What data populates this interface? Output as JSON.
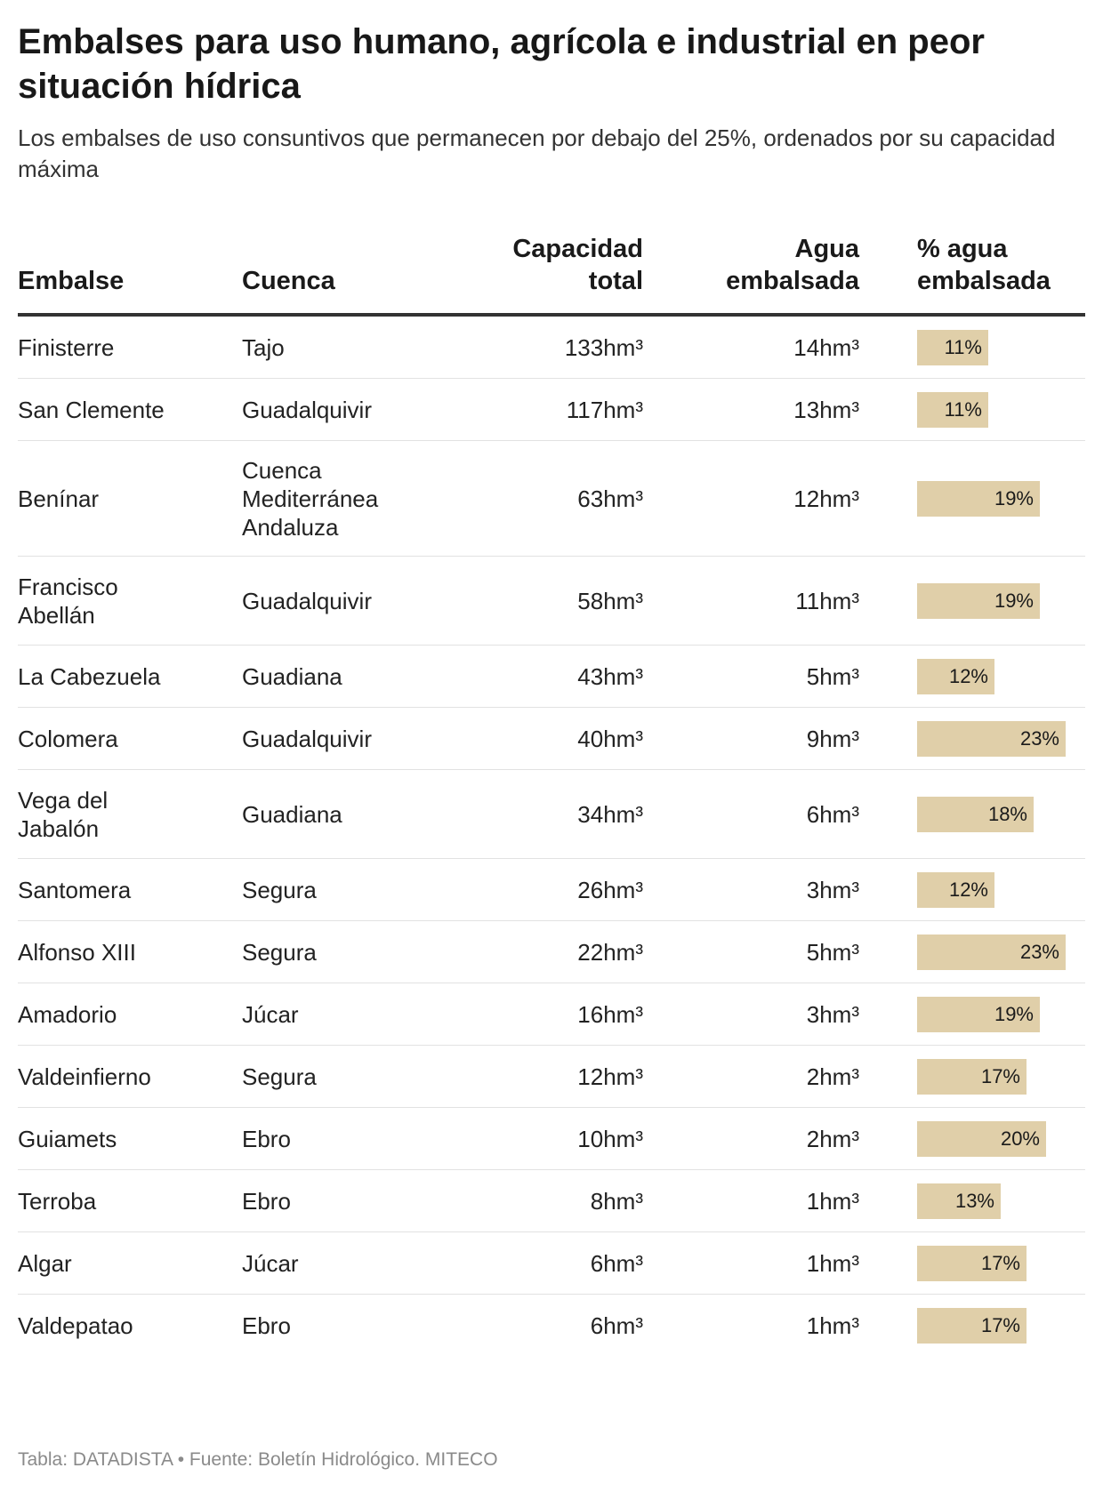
{
  "header": {
    "title": "Embalses para uso humano, agrícola e industrial en peor situación hídrica",
    "subtitle": "Los embalses de uso consuntivos que permanecen por debajo del 25%, ordenados por su capacidad máxima"
  },
  "columns": {
    "name": "Embalse",
    "basin": "Cuenca",
    "capacity_line1": "Capacidad",
    "capacity_line2": "total",
    "water_line1": "Agua",
    "water_line2": "embalsada",
    "pct_line1": "% agua",
    "pct_line2": "embalsada"
  },
  "chart_data": {
    "type": "table",
    "title": "Embalses para uso humano, agrícola e industrial en peor situación hídrica",
    "subtitle": "Los embalses de uso consuntivos que permanecen por debajo del 25%, ordenados por su capacidad máxima",
    "columns": [
      "Embalse",
      "Cuenca",
      "Capacidad total",
      "Agua embalsada",
      "% agua embalsada"
    ],
    "bar_color": "#e0cfa9",
    "rows": [
      {
        "name": "Finisterre",
        "basin": "Tajo",
        "capacity": "133hm³",
        "water": "14hm³",
        "pct": 11,
        "pct_label": "11%"
      },
      {
        "name": "San Clemente",
        "basin": "Guadalquivir",
        "capacity": "117hm³",
        "water": "13hm³",
        "pct": 11,
        "pct_label": "11%"
      },
      {
        "name": "Benínar",
        "basin": "Cuenca Mediterránea Andaluza",
        "capacity": "63hm³",
        "water": "12hm³",
        "pct": 19,
        "pct_label": "19%"
      },
      {
        "name": "Francisco Abellán",
        "basin": "Guadalquivir",
        "capacity": "58hm³",
        "water": "11hm³",
        "pct": 19,
        "pct_label": "19%"
      },
      {
        "name": "La Cabezuela",
        "basin": "Guadiana",
        "capacity": "43hm³",
        "water": "5hm³",
        "pct": 12,
        "pct_label": "12%"
      },
      {
        "name": "Colomera",
        "basin": "Guadalquivir",
        "capacity": "40hm³",
        "water": "9hm³",
        "pct": 23,
        "pct_label": "23%"
      },
      {
        "name": "Vega del Jabalón",
        "basin": "Guadiana",
        "capacity": "34hm³",
        "water": "6hm³",
        "pct": 18,
        "pct_label": "18%"
      },
      {
        "name": "Santomera",
        "basin": "Segura",
        "capacity": "26hm³",
        "water": "3hm³",
        "pct": 12,
        "pct_label": "12%"
      },
      {
        "name": "Alfonso XIII",
        "basin": "Segura",
        "capacity": "22hm³",
        "water": "5hm³",
        "pct": 23,
        "pct_label": "23%"
      },
      {
        "name": "Amadorio",
        "basin": "Júcar",
        "capacity": "16hm³",
        "water": "3hm³",
        "pct": 19,
        "pct_label": "19%"
      },
      {
        "name": "Valdeinfierno",
        "basin": "Segura",
        "capacity": "12hm³",
        "water": "2hm³",
        "pct": 17,
        "pct_label": "17%"
      },
      {
        "name": "Guiamets",
        "basin": "Ebro",
        "capacity": "10hm³",
        "water": "2hm³",
        "pct": 20,
        "pct_label": "20%"
      },
      {
        "name": "Terroba",
        "basin": "Ebro",
        "capacity": "8hm³",
        "water": "1hm³",
        "pct": 13,
        "pct_label": "13%"
      },
      {
        "name": "Algar",
        "basin": "Júcar",
        "capacity": "6hm³",
        "water": "1hm³",
        "pct": 17,
        "pct_label": "17%"
      },
      {
        "name": "Valdepatao",
        "basin": "Ebro",
        "capacity": "6hm³",
        "water": "1hm³",
        "pct": 17,
        "pct_label": "17%"
      }
    ]
  },
  "footer": {
    "source": "Tabla: DATADISTA • Fuente: Boletín Hidrológico. MITECO"
  }
}
